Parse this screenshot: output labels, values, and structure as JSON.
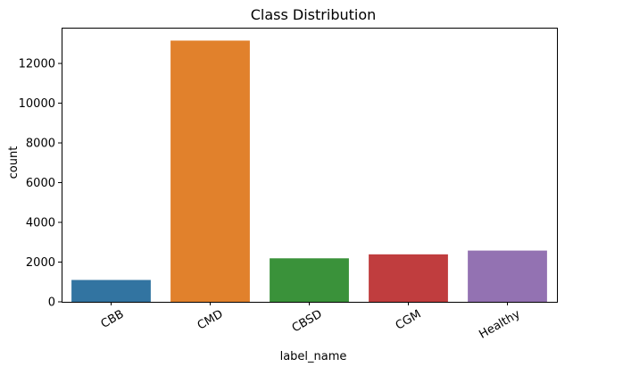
{
  "chart_data": {
    "type": "bar",
    "title": "Class Distribution",
    "xlabel": "label_name",
    "ylabel": "count",
    "categories": [
      "CBB",
      "CMD",
      "CBSD",
      "CGM",
      "Healthy"
    ],
    "values": [
      1100,
      13150,
      2190,
      2390,
      2580
    ],
    "colors": [
      "#3274a1",
      "#e1812c",
      "#3a923a",
      "#c03d3e",
      "#9372b2"
    ],
    "ylim": [
      0,
      13800
    ],
    "yticks": [
      0,
      2000,
      4000,
      6000,
      8000,
      10000,
      12000
    ],
    "ytick_labels": [
      "0",
      "2000",
      "4000",
      "6000",
      "8000",
      "10000",
      "12000"
    ],
    "grid": false,
    "legend": null
  }
}
